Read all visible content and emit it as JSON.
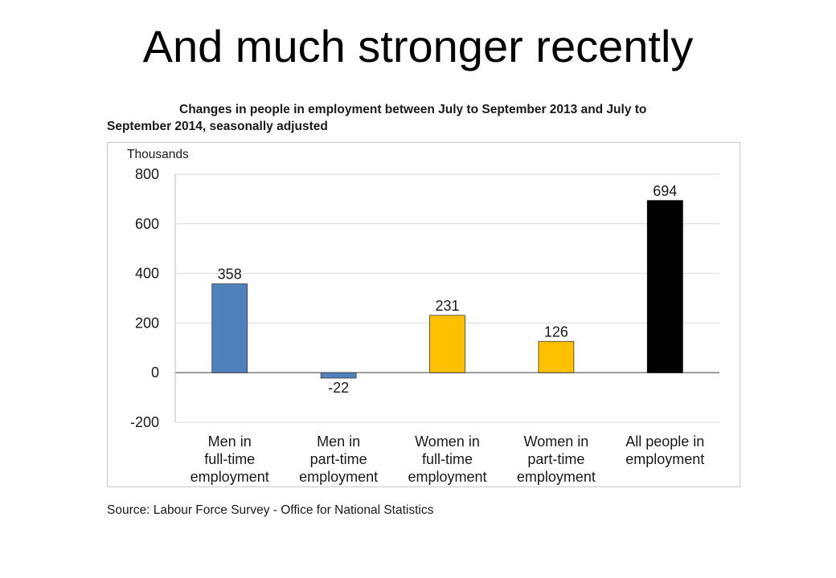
{
  "slide": {
    "title": "And much stronger recently"
  },
  "chart_data": {
    "type": "bar",
    "title_line1": "Changes in people in employment between July to September 2013 and July to",
    "title_line2": "September 2014, seasonally adjusted",
    "ylabel": "Thousands",
    "xlabel": "",
    "ylim": [
      -200,
      800
    ],
    "yticks": [
      "800",
      "600",
      "400",
      "200",
      "0",
      "-200"
    ],
    "ytick_values": [
      800,
      600,
      400,
      200,
      0,
      -200
    ],
    "categories": [
      [
        "Men in",
        "full-time",
        "employment"
      ],
      [
        "Men in",
        "part-time",
        "employment"
      ],
      [
        "Women in",
        "full-time",
        "employment"
      ],
      [
        "Women in",
        "part-time",
        "employment"
      ],
      [
        "All people in",
        "employment"
      ]
    ],
    "values": [
      358,
      -22,
      231,
      126,
      694
    ],
    "data_labels": [
      "358",
      "-22",
      "231",
      "126",
      "694"
    ],
    "colors": [
      "#4f81bd",
      "#4f81bd",
      "#ffc000",
      "#ffc000",
      "#000000"
    ],
    "grid": true,
    "legend": "none",
    "source": "Source: Labour Force Survey - Office for National Statistics"
  }
}
